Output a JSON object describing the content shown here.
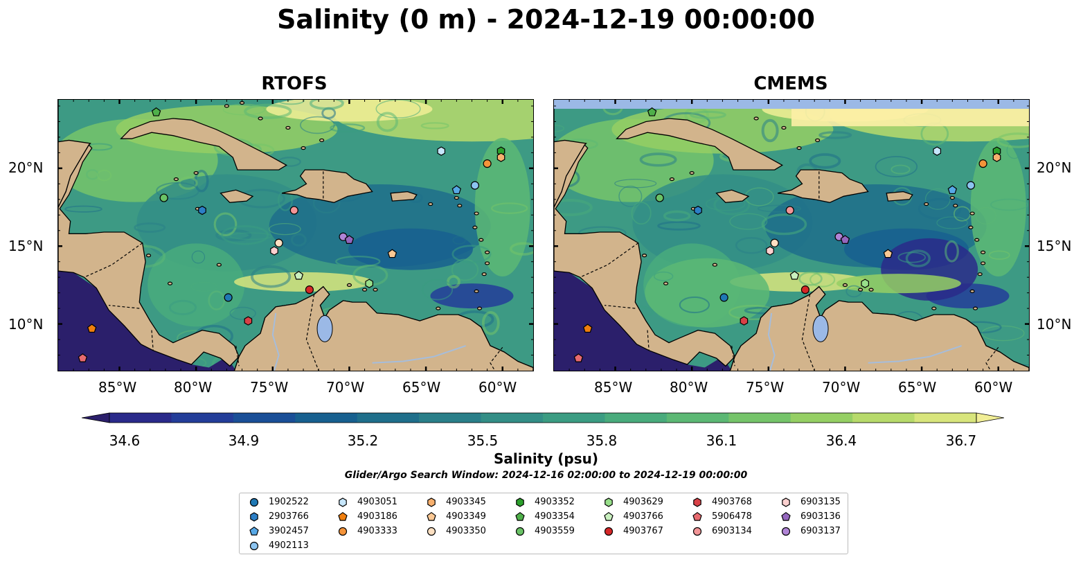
{
  "title": "Salinity (0 m) - 2024-12-19 00:00:00",
  "panels": [
    {
      "title": "RTOFS"
    },
    {
      "title": "CMEMS"
    }
  ],
  "lon_labels": [
    "85°W",
    "80°W",
    "75°W",
    "70°W",
    "65°W",
    "60°W"
  ],
  "lat_labels": [
    "20°N",
    "15°N",
    "10°N"
  ],
  "colorbar": {
    "label": "Salinity (psu)",
    "ticks": [
      "34.6",
      "34.9",
      "35.2",
      "35.5",
      "35.8",
      "36.1",
      "36.4",
      "36.7"
    ],
    "min": 34.6,
    "max": 36.7,
    "colors": [
      "#2b1f6b",
      "#2a2a8a",
      "#233d99",
      "#1a4f97",
      "#17608f",
      "#1f6f8b",
      "#2a7f89",
      "#338e86",
      "#3b9c82",
      "#49ab7c",
      "#5cb874",
      "#75c46a",
      "#95cf64",
      "#b7da6b",
      "#d8e57c",
      "#f1ee96"
    ]
  },
  "search_window": "Glider/Argo Search Window: 2024-12-16 02:00:00 to 2024-12-19 00:00:00",
  "legend": [
    {
      "id": "1902522",
      "marker": "circle",
      "color": "#1f78b4"
    },
    {
      "id": "2903766",
      "marker": "hexagon",
      "color": "#2c7fc6"
    },
    {
      "id": "3902457",
      "marker": "pentagon",
      "color": "#57a8e6"
    },
    {
      "id": "4902113",
      "marker": "circle",
      "color": "#8cc4f0"
    },
    {
      "id": "4903051",
      "marker": "hexagon",
      "color": "#c6e6fb"
    },
    {
      "id": "4903186",
      "marker": "pentagon",
      "color": "#f07f0e"
    },
    {
      "id": "4903333",
      "marker": "circle",
      "color": "#f5943a"
    },
    {
      "id": "4903345",
      "marker": "hexagon",
      "color": "#f7b06e"
    },
    {
      "id": "4903349",
      "marker": "pentagon",
      "color": "#fbc894"
    },
    {
      "id": "4903350",
      "marker": "circle",
      "color": "#fde0c2"
    },
    {
      "id": "4903352",
      "marker": "hexagon",
      "color": "#2ca02c"
    },
    {
      "id": "4903354",
      "marker": "pentagon",
      "color": "#4fb04a"
    },
    {
      "id": "4903559",
      "marker": "circle",
      "color": "#6ac266"
    },
    {
      "id": "4903629",
      "marker": "hexagon",
      "color": "#98df8a"
    },
    {
      "id": "4903766",
      "marker": "pentagon",
      "color": "#c9f0bf"
    },
    {
      "id": "4903767",
      "marker": "circle",
      "color": "#d62728"
    },
    {
      "id": "4903768",
      "marker": "hexagon",
      "color": "#d94147"
    },
    {
      "id": "5906478",
      "marker": "pentagon",
      "color": "#e86a6f"
    },
    {
      "id": "6903134",
      "marker": "circle",
      "color": "#f29597"
    },
    {
      "id": "6903135",
      "marker": "hexagon",
      "color": "#fbd0cf"
    },
    {
      "id": "6903136",
      "marker": "pentagon",
      "color": "#9467bd"
    },
    {
      "id": "6903137",
      "marker": "circle",
      "color": "#b084d6"
    }
  ],
  "floats": [
    {
      "id": "4903352",
      "lon": -60.1,
      "lat": 21.1
    },
    {
      "id": "4903345",
      "lon": -60.1,
      "lat": 20.7
    },
    {
      "id": "4903333",
      "lon": -61.0,
      "lat": 20.3
    },
    {
      "id": "4903051",
      "lon": -64.0,
      "lat": 21.1
    },
    {
      "id": "4902113",
      "lon": -61.8,
      "lat": 18.9
    },
    {
      "id": "3902457",
      "lon": -63.0,
      "lat": 18.6
    },
    {
      "id": "4903354",
      "lon": -82.6,
      "lat": 23.6
    },
    {
      "id": "4903559",
      "lon": -82.1,
      "lat": 18.1
    },
    {
      "id": "2903766",
      "lon": -79.6,
      "lat": 17.3
    },
    {
      "id": "6903134",
      "lon": -73.6,
      "lat": 17.3
    },
    {
      "id": "6903137",
      "lon": -70.4,
      "lat": 15.6
    },
    {
      "id": "6903136",
      "lon": -70.0,
      "lat": 15.4
    },
    {
      "id": "4903350",
      "lon": -74.6,
      "lat": 15.2
    },
    {
      "id": "6903135",
      "lon": -74.9,
      "lat": 14.7
    },
    {
      "id": "4903349",
      "lon": -67.2,
      "lat": 14.5
    },
    {
      "id": "4903766",
      "lon": -73.3,
      "lat": 13.1
    },
    {
      "id": "4903629",
      "lon": -68.7,
      "lat": 12.6
    },
    {
      "id": "4903767",
      "lon": -72.6,
      "lat": 12.2
    },
    {
      "id": "1902522",
      "lon": -77.9,
      "lat": 11.7
    },
    {
      "id": "4903768",
      "lon": -76.6,
      "lat": 10.2
    },
    {
      "id": "4903186",
      "lon": -86.8,
      "lat": 9.7
    },
    {
      "id": "5906478",
      "lon": -87.4,
      "lat": 7.8
    }
  ],
  "colors": {
    "land": "#d2b48c",
    "nodata": "#9bb9e6",
    "river": "#a6bddb"
  }
}
